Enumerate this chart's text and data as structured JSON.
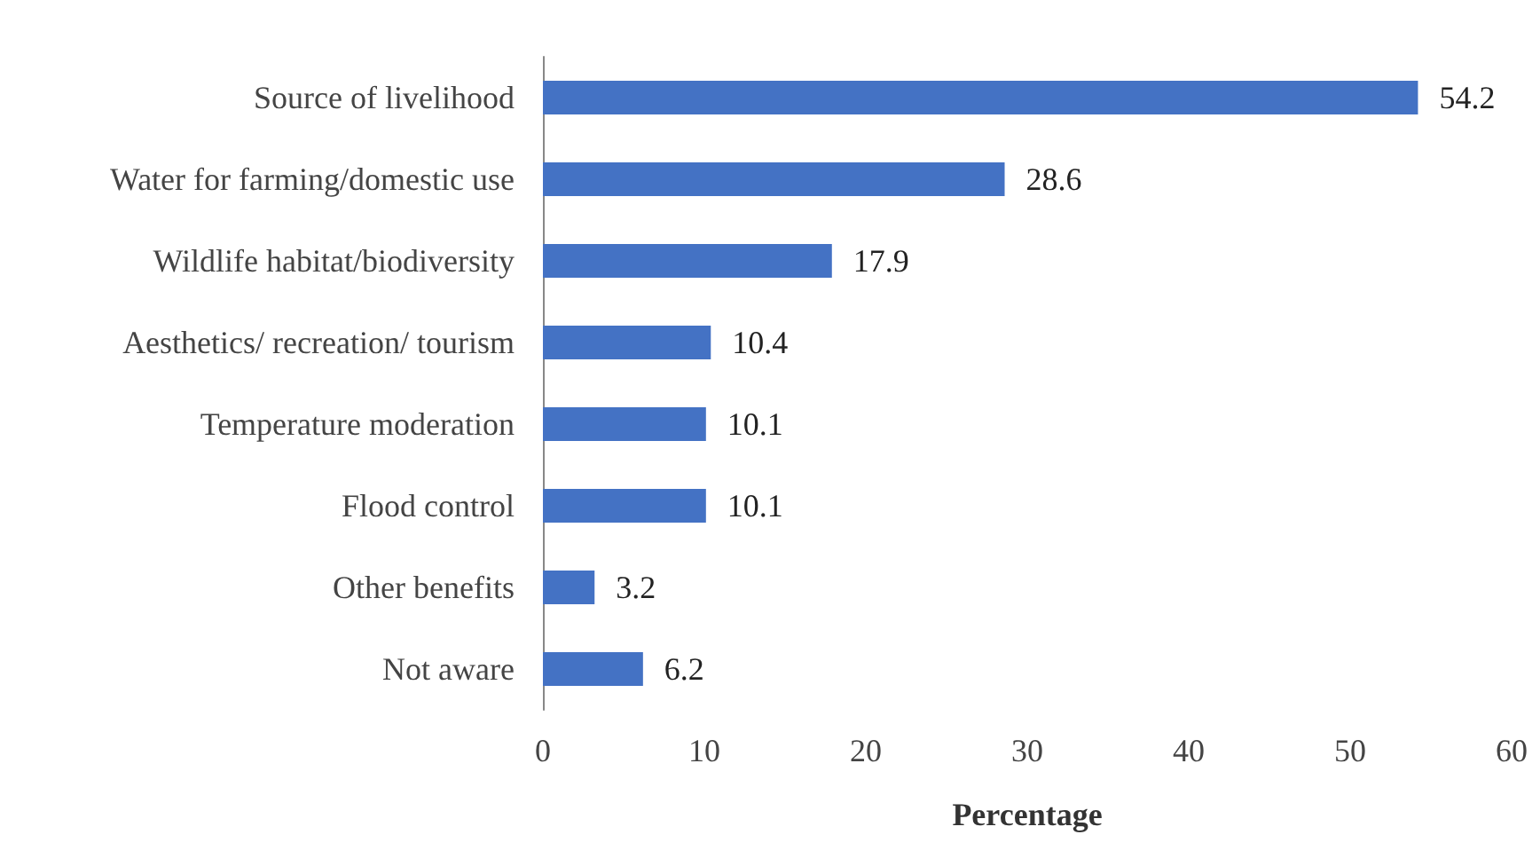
{
  "chart_data": {
    "type": "bar",
    "orientation": "horizontal",
    "xlabel": "Percentage",
    "categories": [
      "Source of livelihood",
      "Water for farming/domestic use",
      "Wildlife habitat/biodiversity",
      "Aesthetics/ recreation/ tourism",
      "Temperature moderation",
      "Flood control",
      "Other benefits",
      "Not aware"
    ],
    "values": [
      54.2,
      28.6,
      17.9,
      10.4,
      10.1,
      10.1,
      3.2,
      6.2
    ],
    "color": "#4472c4",
    "xlim": [
      0,
      60
    ],
    "xticks": [
      0,
      10,
      20,
      30,
      40,
      50,
      60
    ],
    "data_labels": true
  }
}
